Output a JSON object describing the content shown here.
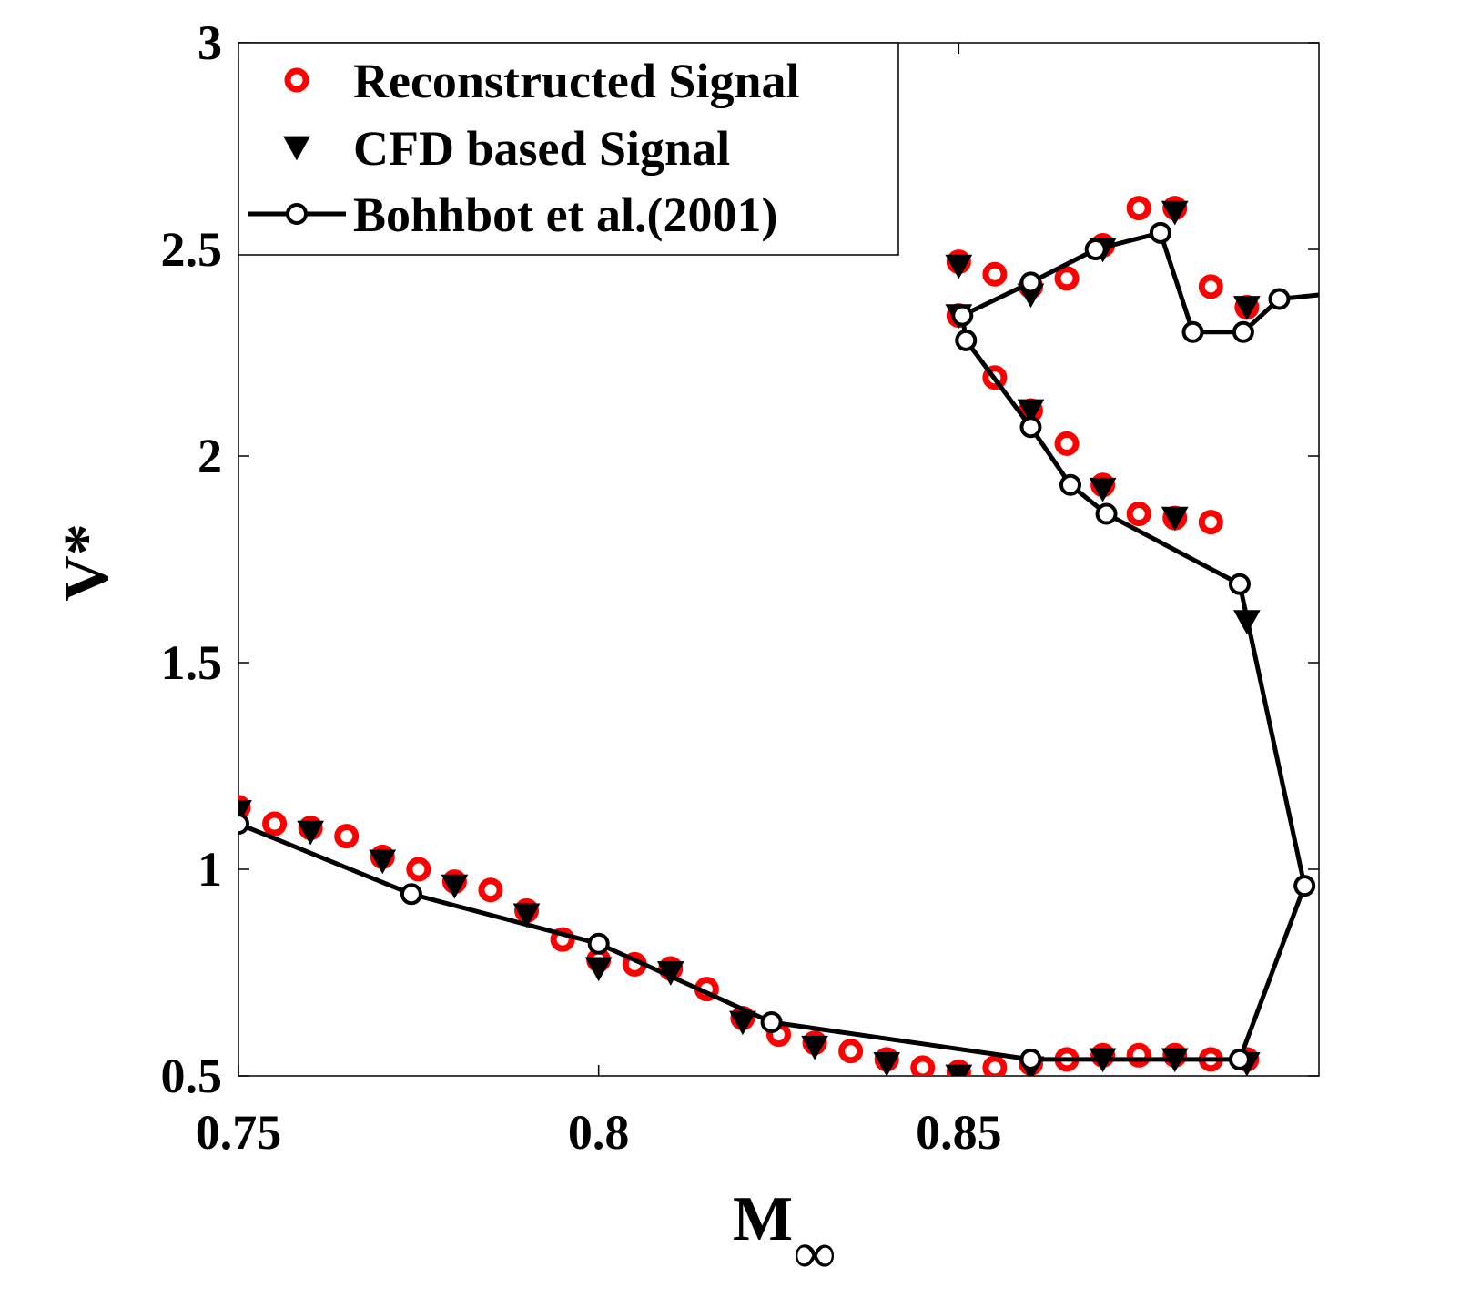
{
  "chart_data": {
    "type": "scatter",
    "title": "",
    "xlabel": "M",
    "xlabel_subscript": "∞",
    "ylabel": "V*",
    "xlim": [
      0.75,
      0.9
    ],
    "ylim": [
      0.5,
      3
    ],
    "xticks": [
      0.75,
      0.8,
      0.85
    ],
    "xtick_labels": [
      "0.75",
      "0.8",
      "0.85"
    ],
    "yticks": [
      0.5,
      1,
      1.5,
      2,
      2.5,
      3
    ],
    "ytick_labels": [
      "0.5",
      "1",
      "1.5",
      "2",
      "2.5",
      "3"
    ],
    "grid": false,
    "legend_position": "top-left",
    "series": [
      {
        "name": "Reconstructed Signal",
        "marker": "open-circle",
        "line": false,
        "color": "#ff0000",
        "x": [
          0.75,
          0.755,
          0.76,
          0.765,
          0.77,
          0.775,
          0.78,
          0.785,
          0.79,
          0.795,
          0.8,
          0.805,
          0.81,
          0.815,
          0.82,
          0.825,
          0.83,
          0.835,
          0.84,
          0.845,
          0.85,
          0.855,
          0.86,
          0.865,
          0.87,
          0.875,
          0.88,
          0.885,
          0.89,
          0.885,
          0.88,
          0.875,
          0.87,
          0.865,
          0.86,
          0.855,
          0.85,
          0.85,
          0.855,
          0.86,
          0.865,
          0.87,
          0.875,
          0.88,
          0.885,
          0.89
        ],
        "y": [
          1.15,
          1.11,
          1.1,
          1.08,
          1.03,
          1.0,
          0.97,
          0.95,
          0.9,
          0.83,
          0.78,
          0.77,
          0.76,
          0.71,
          0.64,
          0.6,
          0.58,
          0.56,
          0.54,
          0.52,
          0.51,
          0.52,
          0.53,
          0.54,
          0.55,
          0.55,
          0.55,
          0.54,
          0.54,
          1.84,
          1.85,
          1.86,
          1.93,
          2.03,
          2.11,
          2.19,
          2.34,
          2.47,
          2.44,
          2.41,
          2.43,
          2.51,
          2.6,
          2.6,
          2.41,
          2.36
        ]
      },
      {
        "name": "CFD based Signal",
        "marker": "filled-down-triangle",
        "line": false,
        "color": "#000000",
        "x": [
          0.75,
          0.76,
          0.77,
          0.78,
          0.79,
          0.8,
          0.81,
          0.82,
          0.83,
          0.84,
          0.85,
          0.86,
          0.87,
          0.88,
          0.89,
          0.89,
          0.88,
          0.87,
          0.86,
          0.85,
          0.85,
          0.86,
          0.87,
          0.88,
          0.89
        ],
        "y": [
          1.14,
          1.09,
          1.02,
          0.96,
          0.89,
          0.76,
          0.75,
          0.63,
          0.57,
          0.53,
          0.5,
          0.52,
          0.54,
          0.54,
          0.53,
          1.6,
          1.85,
          1.92,
          2.11,
          2.34,
          2.46,
          2.39,
          2.5,
          2.59,
          2.36
        ]
      },
      {
        "name": "Bohhbot et al.(2001)",
        "marker": "open-circle",
        "line": true,
        "color": "#000000",
        "x": [
          0.75,
          0.774,
          0.8,
          0.824,
          0.86,
          0.889,
          0.898,
          0.889,
          0.8705,
          0.8655,
          0.86,
          0.851,
          0.8505,
          0.86,
          0.869,
          0.878,
          0.8825,
          0.8895,
          0.8945,
          0.9
        ],
        "y": [
          1.11,
          0.94,
          0.82,
          0.63,
          0.54,
          0.54,
          0.96,
          1.69,
          1.86,
          1.93,
          2.07,
          2.28,
          2.34,
          2.42,
          2.5,
          2.54,
          2.3,
          2.3,
          2.38,
          2.39
        ]
      }
    ]
  }
}
